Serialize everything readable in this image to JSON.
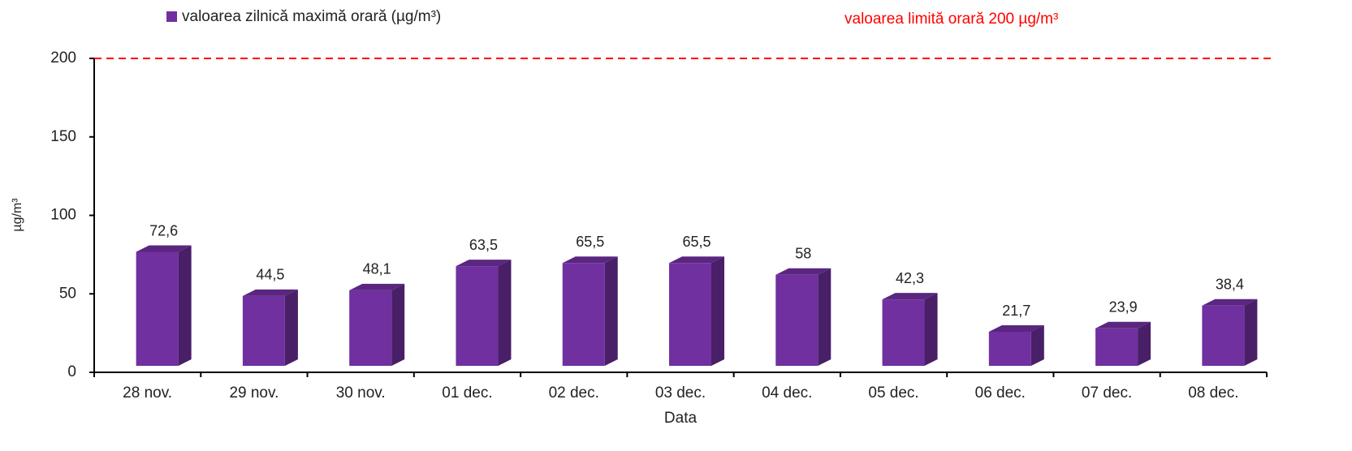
{
  "chart_data": {
    "type": "bar",
    "legend": "valoarea zilnică maximă orară (µg/m³)",
    "y_label": "µg/m³",
    "x_label": "Data",
    "categories": [
      "28 nov.",
      "29 nov.",
      "30 nov.",
      "01 dec.",
      "02 dec.",
      "03 dec.",
      "04 dec.",
      "05 dec.",
      "06 dec.",
      "07 dec.",
      "08 dec."
    ],
    "values": [
      72.6,
      44.5,
      48.1,
      63.5,
      65.5,
      65.5,
      58,
      42.3,
      21.7,
      23.9,
      38.4
    ],
    "value_labels": [
      "72,6",
      "44,5",
      "48,1",
      "63,5",
      "65,5",
      "65,5",
      "58",
      "42,3",
      "21,7",
      "23,9",
      "38,4"
    ],
    "color": "#7030a0",
    "ylim": [
      0,
      200
    ],
    "yticks": [
      0,
      50,
      100,
      150,
      200
    ],
    "reference_line": {
      "value": 200,
      "label": "valoarea limită orară 200 µg/m³",
      "color": "#ff0000"
    }
  }
}
